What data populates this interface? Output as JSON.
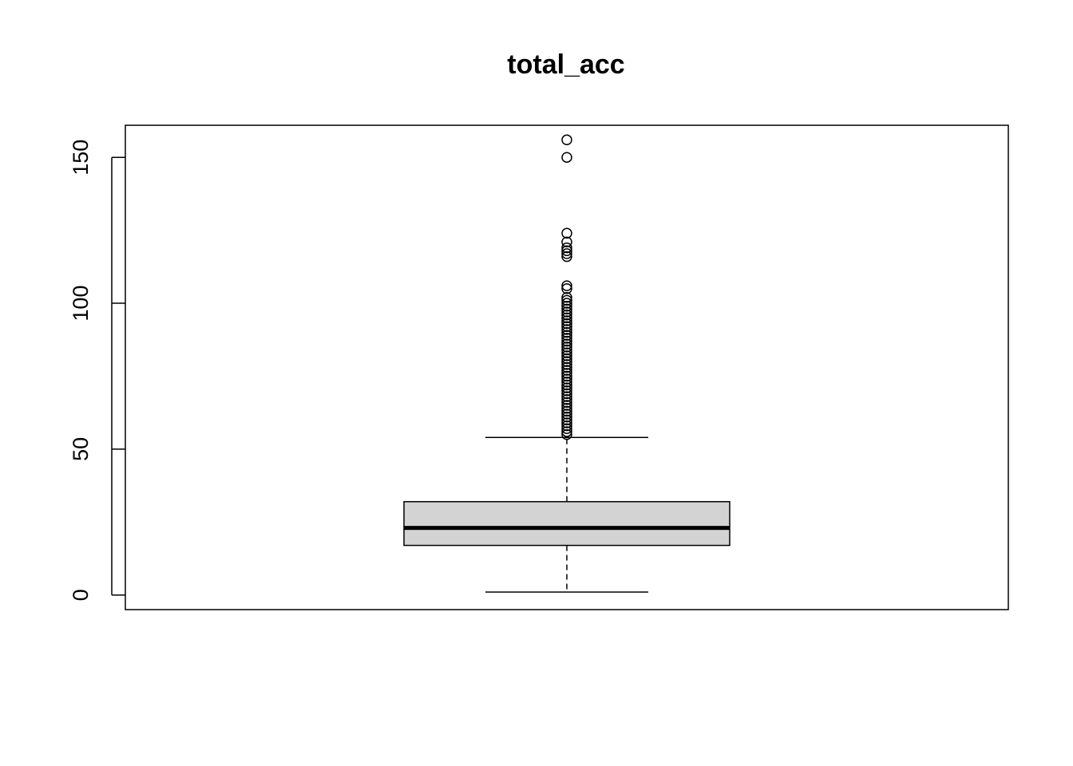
{
  "chart_data": {
    "type": "box",
    "title": "total_acc",
    "xlabel": "",
    "ylabel": "",
    "ylim": [
      -5,
      161
    ],
    "yticks": [
      0,
      50,
      100,
      150
    ],
    "grid": false,
    "box": {
      "whisker_low": 1,
      "q1": 17,
      "median": 23,
      "q3": 32,
      "whisker_high": 54,
      "fill": "#d3d3d3"
    },
    "outliers": [
      55,
      56,
      57,
      58,
      59,
      60,
      61,
      62,
      63,
      64,
      65,
      66,
      67,
      68,
      69,
      70,
      71,
      72,
      73,
      74,
      75,
      76,
      77,
      78,
      79,
      80,
      81,
      82,
      83,
      84,
      85,
      86,
      87,
      88,
      89,
      90,
      91,
      92,
      93,
      94,
      95,
      96,
      97,
      98,
      99,
      100,
      101,
      102,
      105,
      106,
      116,
      117,
      118,
      119,
      121,
      124,
      150,
      156
    ]
  }
}
